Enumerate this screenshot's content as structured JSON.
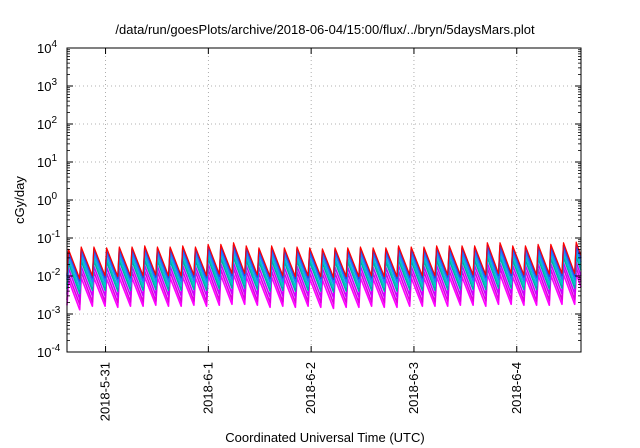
{
  "chart_data": {
    "type": "line",
    "title": "/data/run/goesPlots/archive/2018-06-04/15:00/flux/../bryn/5daysMars.plot",
    "xlabel": "Coordinated Universal Time (UTC)",
    "ylabel": "cGy/day",
    "y_scale": "log",
    "ylim": [
      0.0001,
      10000
    ],
    "y_ticks": [
      {
        "value": 0.0001,
        "exp": "-4"
      },
      {
        "value": 0.001,
        "exp": "-3"
      },
      {
        "value": 0.01,
        "exp": "-2"
      },
      {
        "value": 0.1,
        "exp": "-1"
      },
      {
        "value": 1,
        "exp": "0"
      },
      {
        "value": 10,
        "exp": "1"
      },
      {
        "value": 100,
        "exp": "2"
      },
      {
        "value": 1000,
        "exp": "3"
      },
      {
        "value": 10000,
        "exp": "4"
      }
    ],
    "y_tick_base": "10",
    "xlim": [
      "2018-05-30T15:00",
      "2018-06-04T15:00"
    ],
    "x_ticks": [
      "2018-5-31",
      "2018-6-1",
      "2018-6-2",
      "2018-6-3",
      "2018-6-4"
    ],
    "grid": true,
    "series_colors": [
      "#ff00ff",
      "#dd00dd",
      "#cc00ff",
      "#00aaaa",
      "#00c8c8",
      "#2080ff",
      "#3040e0",
      "#ff0000"
    ],
    "series": [
      {
        "peaks": [
          0.008,
          0.009,
          0.009,
          0.0085,
          0.009,
          0.009,
          0.0095,
          0.009,
          0.009,
          0.0095,
          0.009,
          0.0105,
          0.0105,
          0.011,
          0.0095,
          0.0085,
          0.0095,
          0.0085,
          0.009,
          0.0085,
          0.008,
          0.0085,
          0.0085,
          0.009,
          0.0085,
          0.0085,
          0.0095,
          0.009,
          0.009,
          0.0095,
          0.0095,
          0.0095,
          0.0095,
          0.011,
          0.011,
          0.0095,
          0.0095,
          0.0105,
          0.0105,
          0.011,
          0.0115
        ],
        "troughs": [
          0.0013,
          0.0016,
          0.0016,
          0.0015,
          0.0016,
          0.0016,
          0.0017,
          0.0016,
          0.0016,
          0.0017,
          0.0016,
          0.0017,
          0.0018,
          0.0018,
          0.0017,
          0.0015,
          0.0016,
          0.0015,
          0.0016,
          0.0015,
          0.0014,
          0.0015,
          0.0015,
          0.0016,
          0.0015,
          0.0015,
          0.0016,
          0.0016,
          0.0016,
          0.0016,
          0.0017,
          0.0017,
          0.0016,
          0.0018,
          0.0018,
          0.0017,
          0.0017,
          0.0017,
          0.0018,
          0.0018
        ]
      },
      {
        "peaks": [
          0.011,
          0.013,
          0.013,
          0.012,
          0.013,
          0.013,
          0.0135,
          0.013,
          0.013,
          0.0135,
          0.013,
          0.015,
          0.015,
          0.016,
          0.0135,
          0.012,
          0.0135,
          0.012,
          0.013,
          0.012,
          0.0115,
          0.012,
          0.012,
          0.013,
          0.012,
          0.012,
          0.0135,
          0.013,
          0.013,
          0.0135,
          0.0135,
          0.0135,
          0.0135,
          0.016,
          0.016,
          0.0135,
          0.0135,
          0.015,
          0.015,
          0.016,
          0.0165
        ],
        "troughs": [
          0.0018,
          0.0021,
          0.0021,
          0.002,
          0.0021,
          0.0021,
          0.0022,
          0.0021,
          0.0021,
          0.0022,
          0.0021,
          0.0023,
          0.0024,
          0.0024,
          0.0022,
          0.002,
          0.0021,
          0.002,
          0.0021,
          0.002,
          0.0019,
          0.002,
          0.002,
          0.0021,
          0.002,
          0.002,
          0.0022,
          0.0021,
          0.0021,
          0.0022,
          0.0022,
          0.0022,
          0.0022,
          0.0024,
          0.0024,
          0.0022,
          0.0022,
          0.0023,
          0.0024,
          0.0024
        ]
      },
      {
        "peaks": [
          0.016,
          0.018,
          0.018,
          0.017,
          0.018,
          0.018,
          0.019,
          0.018,
          0.018,
          0.019,
          0.018,
          0.021,
          0.021,
          0.022,
          0.019,
          0.017,
          0.019,
          0.017,
          0.018,
          0.017,
          0.016,
          0.017,
          0.017,
          0.018,
          0.017,
          0.017,
          0.019,
          0.018,
          0.018,
          0.019,
          0.019,
          0.019,
          0.019,
          0.022,
          0.022,
          0.019,
          0.019,
          0.021,
          0.021,
          0.022,
          0.023
        ],
        "troughs": [
          0.0025,
          0.003,
          0.003,
          0.0028,
          0.003,
          0.003,
          0.0031,
          0.003,
          0.003,
          0.0031,
          0.003,
          0.0033,
          0.0034,
          0.0034,
          0.0031,
          0.0028,
          0.003,
          0.0028,
          0.003,
          0.0028,
          0.0027,
          0.0028,
          0.0028,
          0.003,
          0.0028,
          0.0028,
          0.0031,
          0.003,
          0.003,
          0.0031,
          0.0031,
          0.0031,
          0.0031,
          0.0034,
          0.0034,
          0.0031,
          0.0031,
          0.0033,
          0.0034,
          0.0034
        ]
      },
      {
        "peaks": [
          0.022,
          0.025,
          0.025,
          0.024,
          0.025,
          0.025,
          0.026,
          0.025,
          0.025,
          0.026,
          0.025,
          0.029,
          0.029,
          0.031,
          0.026,
          0.024,
          0.026,
          0.024,
          0.025,
          0.024,
          0.022,
          0.024,
          0.024,
          0.025,
          0.024,
          0.024,
          0.026,
          0.025,
          0.025,
          0.026,
          0.026,
          0.026,
          0.026,
          0.031,
          0.031,
          0.026,
          0.026,
          0.029,
          0.029,
          0.031,
          0.032
        ],
        "troughs": [
          0.0035,
          0.0042,
          0.0042,
          0.004,
          0.0042,
          0.0042,
          0.0044,
          0.0042,
          0.0042,
          0.0044,
          0.0042,
          0.0046,
          0.0048,
          0.0048,
          0.0044,
          0.004,
          0.0042,
          0.004,
          0.0042,
          0.004,
          0.0038,
          0.004,
          0.004,
          0.0042,
          0.004,
          0.004,
          0.0044,
          0.0042,
          0.0042,
          0.0044,
          0.0044,
          0.0044,
          0.0044,
          0.0048,
          0.0048,
          0.0044,
          0.0044,
          0.0046,
          0.0048,
          0.0048
        ]
      },
      {
        "peaks": [
          0.028,
          0.032,
          0.032,
          0.03,
          0.032,
          0.032,
          0.034,
          0.032,
          0.032,
          0.034,
          0.032,
          0.037,
          0.037,
          0.039,
          0.034,
          0.03,
          0.034,
          0.03,
          0.032,
          0.03,
          0.028,
          0.03,
          0.03,
          0.032,
          0.03,
          0.03,
          0.034,
          0.032,
          0.032,
          0.034,
          0.034,
          0.034,
          0.034,
          0.039,
          0.039,
          0.034,
          0.034,
          0.037,
          0.037,
          0.039,
          0.041
        ],
        "troughs": [
          0.0045,
          0.0054,
          0.0054,
          0.0051,
          0.0054,
          0.0054,
          0.0056,
          0.0054,
          0.0054,
          0.0056,
          0.0054,
          0.0059,
          0.0061,
          0.0061,
          0.0056,
          0.0051,
          0.0054,
          0.0051,
          0.0054,
          0.0051,
          0.0049,
          0.0051,
          0.0051,
          0.0054,
          0.0051,
          0.0051,
          0.0056,
          0.0054,
          0.0054,
          0.0056,
          0.0056,
          0.0056,
          0.0056,
          0.0061,
          0.0061,
          0.0056,
          0.0056,
          0.0059,
          0.0061,
          0.0061
        ]
      },
      {
        "peaks": [
          0.036,
          0.041,
          0.041,
          0.039,
          0.041,
          0.041,
          0.043,
          0.041,
          0.041,
          0.043,
          0.041,
          0.047,
          0.047,
          0.05,
          0.043,
          0.039,
          0.043,
          0.039,
          0.041,
          0.039,
          0.036,
          0.039,
          0.039,
          0.041,
          0.039,
          0.039,
          0.043,
          0.041,
          0.041,
          0.043,
          0.043,
          0.043,
          0.043,
          0.05,
          0.05,
          0.043,
          0.043,
          0.047,
          0.047,
          0.05,
          0.052
        ],
        "troughs": [
          0.006,
          0.0071,
          0.0071,
          0.0068,
          0.0071,
          0.0071,
          0.0074,
          0.0071,
          0.0071,
          0.0074,
          0.0071,
          0.0078,
          0.0081,
          0.0081,
          0.0074,
          0.0068,
          0.0071,
          0.0068,
          0.0071,
          0.0068,
          0.0065,
          0.0068,
          0.0068,
          0.0071,
          0.0068,
          0.0068,
          0.0074,
          0.0071,
          0.0071,
          0.0074,
          0.0074,
          0.0074,
          0.0074,
          0.0081,
          0.0081,
          0.0074,
          0.0074,
          0.0078,
          0.0081,
          0.0081
        ]
      },
      {
        "peaks": [
          0.045,
          0.052,
          0.052,
          0.049,
          0.052,
          0.052,
          0.055,
          0.052,
          0.052,
          0.055,
          0.052,
          0.06,
          0.06,
          0.064,
          0.055,
          0.049,
          0.055,
          0.049,
          0.052,
          0.049,
          0.046,
          0.049,
          0.049,
          0.052,
          0.049,
          0.049,
          0.055,
          0.052,
          0.052,
          0.055,
          0.055,
          0.055,
          0.055,
          0.064,
          0.064,
          0.055,
          0.055,
          0.06,
          0.06,
          0.064,
          0.067
        ],
        "troughs": [
          0.0075,
          0.009,
          0.009,
          0.0086,
          0.009,
          0.009,
          0.0094,
          0.009,
          0.009,
          0.0094,
          0.009,
          0.0099,
          0.0103,
          0.0103,
          0.0094,
          0.0086,
          0.009,
          0.0086,
          0.009,
          0.0086,
          0.0082,
          0.0086,
          0.0086,
          0.009,
          0.0086,
          0.0086,
          0.0094,
          0.009,
          0.009,
          0.0094,
          0.0094,
          0.0094,
          0.0094,
          0.0103,
          0.0103,
          0.0094,
          0.0094,
          0.0099,
          0.0103,
          0.0103
        ]
      },
      {
        "peaks": [
          0.05,
          0.058,
          0.058,
          0.055,
          0.058,
          0.058,
          0.062,
          0.058,
          0.058,
          0.062,
          0.058,
          0.068,
          0.068,
          0.075,
          0.062,
          0.055,
          0.062,
          0.055,
          0.058,
          0.055,
          0.052,
          0.055,
          0.055,
          0.058,
          0.055,
          0.055,
          0.062,
          0.058,
          0.058,
          0.062,
          0.062,
          0.062,
          0.062,
          0.075,
          0.075,
          0.062,
          0.062,
          0.068,
          0.068,
          0.075,
          0.078
        ],
        "troughs": [
          0.0085,
          0.0102,
          0.0102,
          0.0097,
          0.0102,
          0.0102,
          0.0107,
          0.0102,
          0.0102,
          0.0107,
          0.0102,
          0.0112,
          0.0117,
          0.0117,
          0.0107,
          0.0097,
          0.0102,
          0.0097,
          0.0102,
          0.0097,
          0.0093,
          0.0097,
          0.0097,
          0.0102,
          0.0097,
          0.0097,
          0.0107,
          0.0102,
          0.0102,
          0.0107,
          0.0107,
          0.0107,
          0.0107,
          0.0117,
          0.0117,
          0.0107,
          0.0107,
          0.0112,
          0.0117,
          0.0117
        ]
      }
    ]
  }
}
